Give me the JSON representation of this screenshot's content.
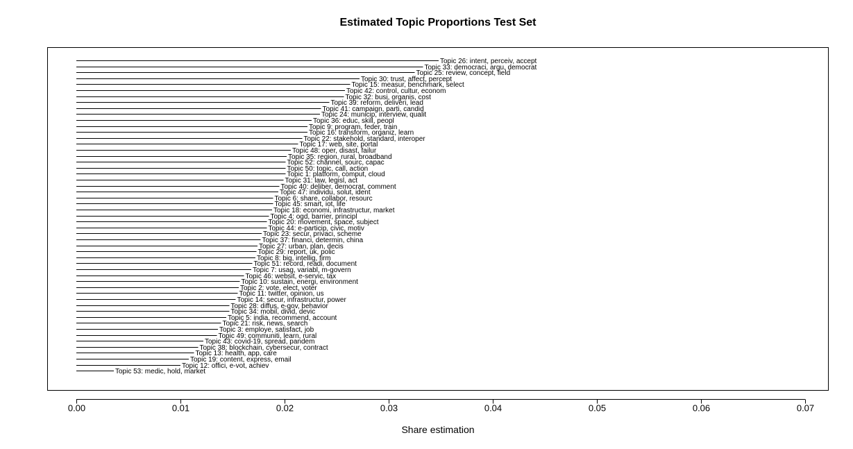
{
  "chart_data": {
    "type": "bar",
    "orientation": "horizontal",
    "title": "Estimated Topic Proportions Test Set",
    "xlabel": "Share estimation",
    "ylabel": "",
    "xlim": [
      0.0,
      0.07
    ],
    "xticks": [
      "0.00",
      "0.01",
      "0.02",
      "0.03",
      "0.04",
      "0.05",
      "0.06",
      "0.07"
    ],
    "grid": false,
    "legend": false,
    "bars": [
      {
        "label": "Topic 26: intent, perceiv, accept",
        "value": 0.0348
      },
      {
        "label": "Topic 33: democraci, argu, democrat",
        "value": 0.0333
      },
      {
        "label": "Topic 25: review, concept, field",
        "value": 0.0325
      },
      {
        "label": "Topic 30: trust, affect, percept",
        "value": 0.0272
      },
      {
        "label": "Topic 15: measur, benchmark, select",
        "value": 0.0263
      },
      {
        "label": "Topic 42: control, cultur, econom",
        "value": 0.0258
      },
      {
        "label": "Topic 32: busi, organis, cost",
        "value": 0.0257
      },
      {
        "label": "Topic 39: reform, deliveri, lead",
        "value": 0.0243
      },
      {
        "label": "Topic 41: campaign, parti, candid",
        "value": 0.0235
      },
      {
        "label": "Topic 24: municip, interview, qualit",
        "value": 0.0234
      },
      {
        "label": "Topic 36: educ, skill, peopl",
        "value": 0.0226
      },
      {
        "label": "Topic 9: program, feder, train",
        "value": 0.0222
      },
      {
        "label": "Topic 16: transform, organiz, learn",
        "value": 0.0222
      },
      {
        "label": "Topic 22: stakehold, standard, interoper",
        "value": 0.0217
      },
      {
        "label": "Topic 17: web, site, portal",
        "value": 0.0213
      },
      {
        "label": "Topic 48: oper, disast, failur",
        "value": 0.0206
      },
      {
        "label": "Topic 35: region, rural, broadband",
        "value": 0.0202
      },
      {
        "label": "Topic 52: channel, sourc, capac",
        "value": 0.0201
      },
      {
        "label": "Topic 50: topic, call, action",
        "value": 0.0201
      },
      {
        "label": "Topic 1: platform, comput, cloud",
        "value": 0.0201
      },
      {
        "label": "Topic 31: law, legisl, act",
        "value": 0.0199
      },
      {
        "label": "Topic 40: deliber, democrat, comment",
        "value": 0.0195
      },
      {
        "label": "Topic 47: individu, solut, ident",
        "value": 0.0194
      },
      {
        "label": "Topic 6: share, collabor, resourc",
        "value": 0.0189
      },
      {
        "label": "Topic 45: smart, iot, life",
        "value": 0.0189
      },
      {
        "label": "Topic 18: economi, infrastructur, market",
        "value": 0.0188
      },
      {
        "label": "Topic 4: ogd, barrier, principl",
        "value": 0.0185
      },
      {
        "label": "Topic 20: movement, space, subject",
        "value": 0.0183
      },
      {
        "label": "Topic 44: e-particip, civic, motiv",
        "value": 0.0183
      },
      {
        "label": "Topic 23: secur, privaci, scheme",
        "value": 0.0178
      },
      {
        "label": "Topic 37: financi, determin, china",
        "value": 0.0177
      },
      {
        "label": "Topic 27: urban, plan, decis",
        "value": 0.0174
      },
      {
        "label": "Topic 29: report, uk, polic",
        "value": 0.0173
      },
      {
        "label": "Topic 8: big, intellig, firm",
        "value": 0.0172
      },
      {
        "label": "Topic 51: record, readi, document",
        "value": 0.0169
      },
      {
        "label": "Topic 7: usag, variabl, m-govern",
        "value": 0.0168
      },
      {
        "label": "Topic 46: websit, e-servic, tax",
        "value": 0.0161
      },
      {
        "label": "Topic 10: sustain, energi, environment",
        "value": 0.0157
      },
      {
        "label": "Topic 2: vote, elect, voter",
        "value": 0.0156
      },
      {
        "label": "Topic 11: twitter, opinion, us",
        "value": 0.0155
      },
      {
        "label": "Topic 14: secur, infrastructur, power",
        "value": 0.0153
      },
      {
        "label": "Topic 28: diffus, e-gov, behavior",
        "value": 0.0147
      },
      {
        "label": "Topic 34: mobil, divid, devic",
        "value": 0.0147
      },
      {
        "label": "Topic 5: india, recommend, account",
        "value": 0.0144
      },
      {
        "label": "Topic 21: risk, news, search",
        "value": 0.0139
      },
      {
        "label": "Topic 3: employe, satisfact, job",
        "value": 0.0136
      },
      {
        "label": "Topic 49: communiti, learn, rural",
        "value": 0.0135
      },
      {
        "label": "Topic 43: covid-19, spread, pandem",
        "value": 0.0122
      },
      {
        "label": "Topic 38: blockchain, cybersecur, contract",
        "value": 0.0117
      },
      {
        "label": "Topic 13: health, app, care",
        "value": 0.0113
      },
      {
        "label": "Topic 19: content, express, email",
        "value": 0.0108
      },
      {
        "label": "Topic 12: offici, e-vot, achiev",
        "value": 0.01
      },
      {
        "label": "Topic 53: medic, hold, market",
        "value": 0.0036
      }
    ]
  }
}
